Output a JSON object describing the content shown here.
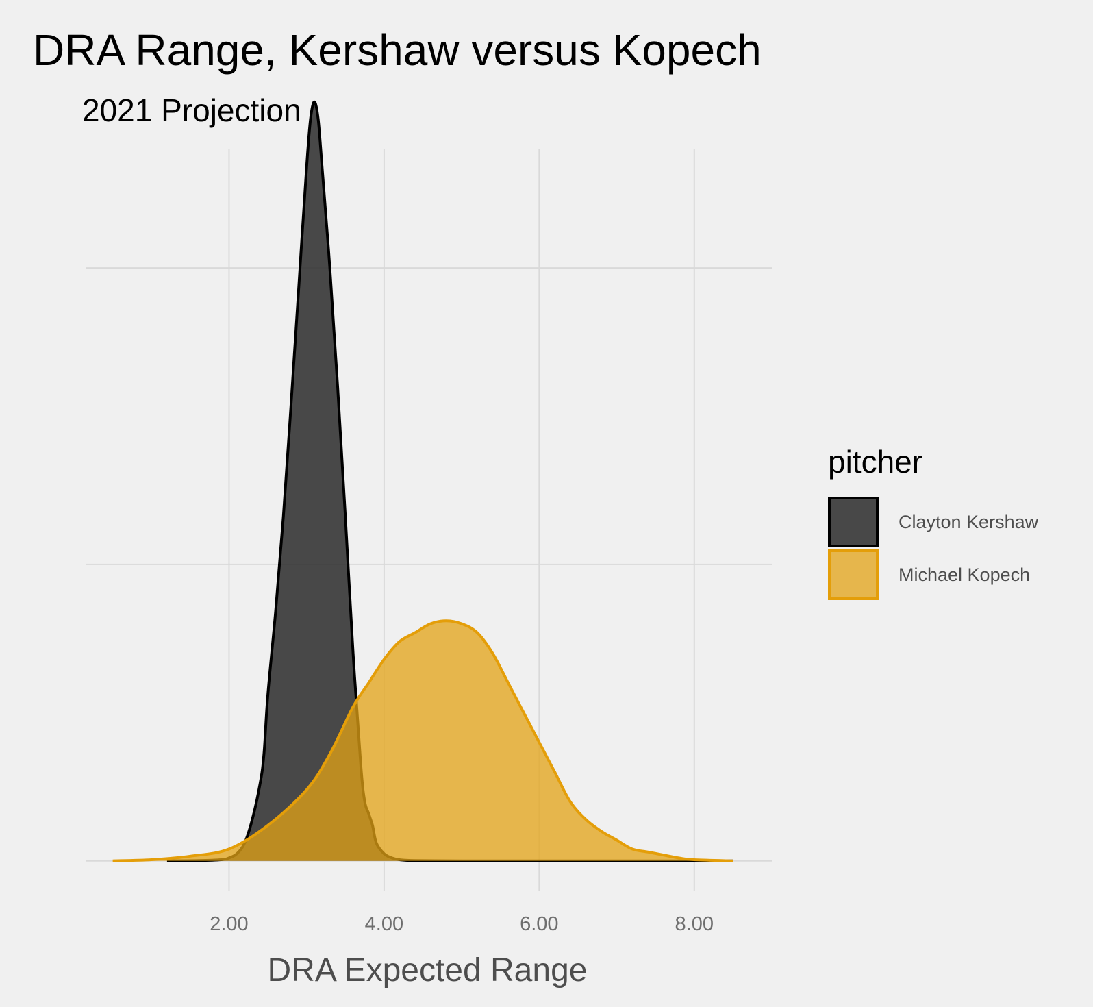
{
  "chart_data": {
    "type": "area",
    "subtype": "density",
    "title": "DRA Range, Kershaw versus Kopech",
    "subtitle": "2021 Projection",
    "xlabel": "DRA Expected Range",
    "ylabel": "",
    "xlim": [
      0.15,
      9.0
    ],
    "ylim": [
      -0.05,
      1.2
    ],
    "x_ticks": [
      2.0,
      4.0,
      6.0,
      8.0
    ],
    "x_tick_labels": [
      "2.00",
      "4.00",
      "6.00",
      "8.00"
    ],
    "y_gridlines": [
      0,
      0.5,
      1.0
    ],
    "grid": true,
    "legend": {
      "title": "pitcher",
      "placement": "right",
      "items": [
        {
          "label": "Clayton Kershaw"
        },
        {
          "label": "Michael Kopech"
        }
      ]
    },
    "series": [
      {
        "name": "Clayton Kershaw",
        "fill": "#2a2a2a",
        "fill_opacity": 0.85,
        "stroke": "#000000",
        "x": [
          1.2,
          1.6,
          1.9,
          2.0,
          2.1,
          2.2,
          2.3,
          2.4,
          2.45,
          2.5,
          2.6,
          2.7,
          2.8,
          2.9,
          3.0,
          3.05,
          3.1,
          3.15,
          3.2,
          3.3,
          3.4,
          3.5,
          3.6,
          3.7,
          3.75,
          3.8,
          3.85,
          3.9,
          4.0,
          4.1,
          4.2,
          4.4,
          5.0,
          6.0,
          7.0,
          8.0,
          8.5
        ],
        "y": [
          0.0,
          0.0005,
          0.002,
          0.005,
          0.012,
          0.03,
          0.07,
          0.13,
          0.18,
          0.28,
          0.42,
          0.58,
          0.77,
          0.97,
          1.17,
          1.25,
          1.28,
          1.25,
          1.17,
          1.0,
          0.8,
          0.58,
          0.35,
          0.16,
          0.1,
          0.08,
          0.06,
          0.03,
          0.012,
          0.005,
          0.002,
          0.0005,
          0.0,
          0.0,
          0.0,
          0.0,
          0.0
        ]
      },
      {
        "name": "Michael Kopech",
        "fill": "#e3a316",
        "fill_opacity": 0.75,
        "stroke": "#e49e09",
        "x": [
          0.5,
          1.0,
          1.5,
          2.0,
          2.5,
          3.0,
          3.3,
          3.6,
          3.8,
          4.0,
          4.2,
          4.4,
          4.6,
          4.8,
          5.0,
          5.2,
          5.4,
          5.6,
          5.8,
          6.0,
          6.2,
          6.4,
          6.6,
          6.8,
          7.0,
          7.2,
          7.4,
          7.6,
          7.8,
          8.0,
          8.5
        ],
        "y": [
          0.0,
          0.002,
          0.008,
          0.02,
          0.06,
          0.12,
          0.18,
          0.26,
          0.3,
          0.34,
          0.37,
          0.385,
          0.4,
          0.405,
          0.4,
          0.385,
          0.35,
          0.3,
          0.25,
          0.2,
          0.15,
          0.1,
          0.07,
          0.05,
          0.035,
          0.02,
          0.015,
          0.01,
          0.005,
          0.002,
          0.0
        ]
      }
    ]
  }
}
